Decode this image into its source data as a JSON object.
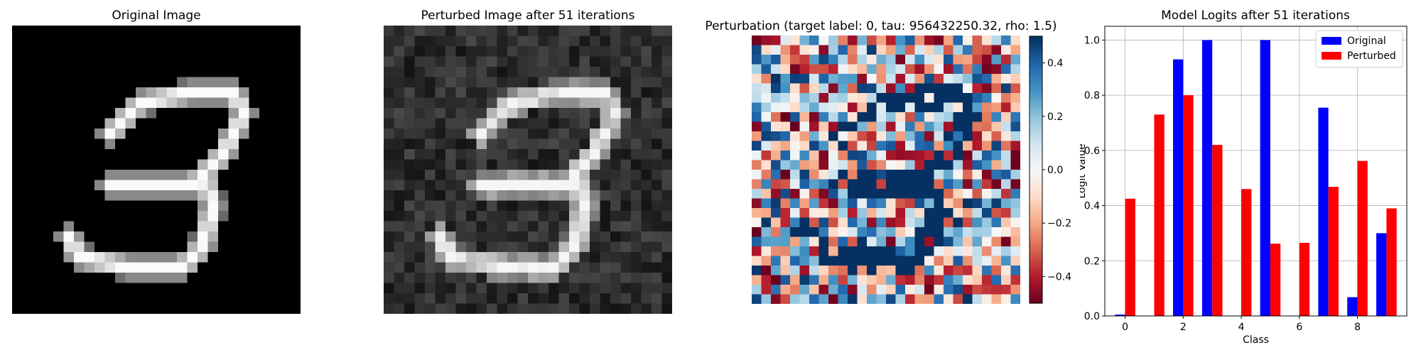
{
  "chart_data": [
    {
      "type": "heatmap",
      "title": "Original Image",
      "colormap": "gray",
      "rows": 28,
      "cols": 28
    },
    {
      "type": "heatmap",
      "title": "Perturbed Image after 51 iterations",
      "colormap": "gray",
      "rows": 28,
      "cols": 28
    },
    {
      "type": "heatmap",
      "title": "Perturbation (target label: 0, tau: 956432250.32, rho: 1.5)",
      "colormap": "RdBu",
      "rows": 28,
      "cols": 28,
      "colorbar": {
        "range": [
          -0.5,
          0.5
        ],
        "ticks": [
          0.4,
          0.2,
          0.0,
          -0.2,
          -0.4
        ],
        "tick_labels": [
          "0.4",
          "0.2",
          "0.0",
          "−0.2",
          "−0.4"
        ]
      }
    },
    {
      "type": "bar",
      "title": "Model Logits after 51 iterations",
      "xlabel": "Class",
      "ylabel": "Logit Value",
      "categories": [
        0,
        1,
        2,
        3,
        4,
        5,
        6,
        7,
        8,
        9
      ],
      "ylim": [
        0,
        1.05
      ],
      "xticks": [
        "0",
        "2",
        "4",
        "6",
        "8"
      ],
      "yticks": [
        "0.0",
        "0.2",
        "0.4",
        "0.6",
        "0.8",
        "1.0"
      ],
      "grid": true,
      "legend": "top-right",
      "series": [
        {
          "name": "Original",
          "color": "#0000ff",
          "values": [
            0.005,
            0.0,
            0.93,
            1.0,
            0.0,
            1.0,
            0.0,
            0.755,
            0.068,
            0.3
          ]
        },
        {
          "name": "Perturbed",
          "color": "#ff0000",
          "values": [
            0.425,
            0.73,
            0.8,
            0.62,
            0.46,
            0.262,
            0.265,
            0.468,
            0.562,
            0.39
          ]
        }
      ]
    }
  ]
}
